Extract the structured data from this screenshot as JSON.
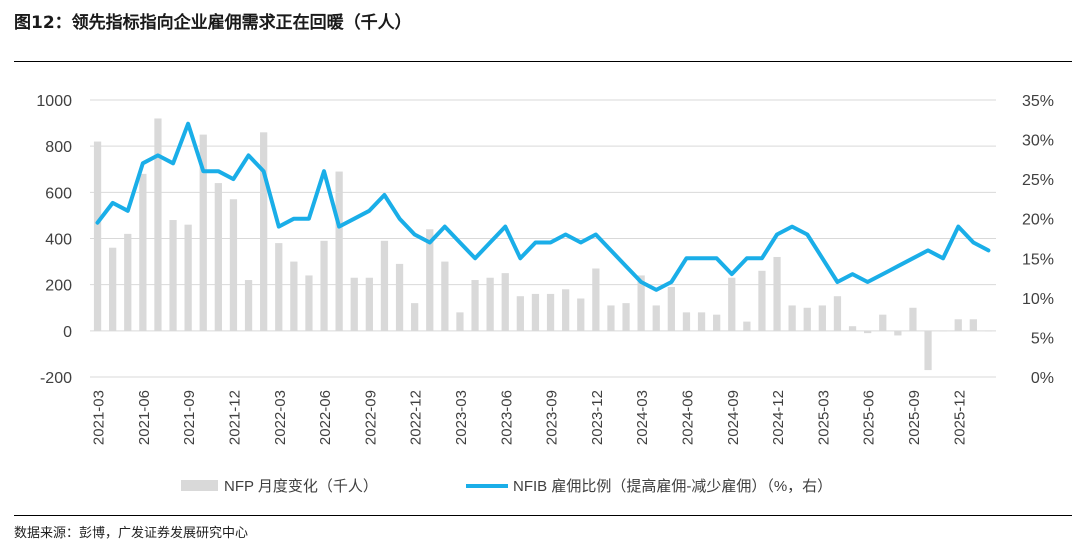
{
  "header": {
    "title": "图12：领先指标指向企业雇佣需求正在回暖（千人）"
  },
  "footer": {
    "source": "数据来源：彭博，广发证券发展研究中心"
  },
  "colors": {
    "bars": "#d9d9d9",
    "line": "#1aaee8",
    "axis_text": "#404040",
    "grid": "#d9d9d9"
  },
  "chart_data": {
    "type": "bar+line",
    "title": "领先指标指向企业雇佣需求正在回暖（千人）",
    "x_tick_labels": [
      "2021-03",
      "2021-06",
      "2021-09",
      "2021-12",
      "2022-03",
      "2022-06",
      "2022-09",
      "2022-12",
      "2023-03",
      "2023-06",
      "2023-09",
      "2023-12",
      "2024-03",
      "2024-06",
      "2024-09",
      "2024-12",
      "2025-03",
      "2025-06",
      "2025-09",
      "2025-12"
    ],
    "y_left": {
      "min": -200,
      "max": 1000,
      "step": 200,
      "tick_labels": [
        "-200",
        "0",
        "200",
        "400",
        "600",
        "800",
        "1000"
      ]
    },
    "y_right": {
      "min": 0,
      "max": 35,
      "step": 5,
      "tick_labels": [
        "0%",
        "5%",
        "10%",
        "15%",
        "20%",
        "25%",
        "30%",
        "35%"
      ]
    },
    "legend": {
      "position": "bottom",
      "bars_label": "NFP 月度变化（千人）",
      "line_label": "NFIB 雇佣比例（提高雇佣-减少雇佣）（%，右）"
    },
    "series": [
      {
        "name": "NFP 月度变化（千人）",
        "type": "bar",
        "axis": "left",
        "start": "2021-03",
        "values": [
          820,
          360,
          420,
          680,
          920,
          480,
          460,
          850,
          640,
          570,
          220,
          860,
          380,
          300,
          240,
          390,
          690,
          230,
          230,
          390,
          290,
          120,
          440,
          300,
          80,
          220,
          230,
          250,
          150,
          160,
          160,
          180,
          140,
          270,
          110,
          120,
          240,
          110,
          190,
          80,
          80,
          70,
          230,
          40,
          260,
          320,
          110,
          100,
          110,
          150,
          20,
          -10,
          70,
          -20,
          100,
          -170,
          0,
          50,
          50,
          0
        ]
      },
      {
        "name": "NFIB 雇佣比例（提高雇佣-减少雇佣）（%，右）",
        "type": "line",
        "axis": "right",
        "start": "2021-03",
        "values": [
          19.5,
          22,
          21,
          27,
          28,
          27,
          32,
          26,
          26,
          25,
          28,
          26,
          19,
          20,
          20,
          26,
          19,
          20,
          21,
          23,
          20,
          18,
          17,
          19,
          17,
          15,
          17,
          19,
          15,
          17,
          17,
          18,
          17,
          18,
          16,
          14,
          12,
          11,
          12,
          15,
          15,
          15,
          13,
          15,
          15,
          18,
          19,
          18,
          15,
          12,
          13,
          12,
          13,
          14,
          15,
          16,
          15,
          19,
          17,
          16
        ]
      }
    ]
  }
}
